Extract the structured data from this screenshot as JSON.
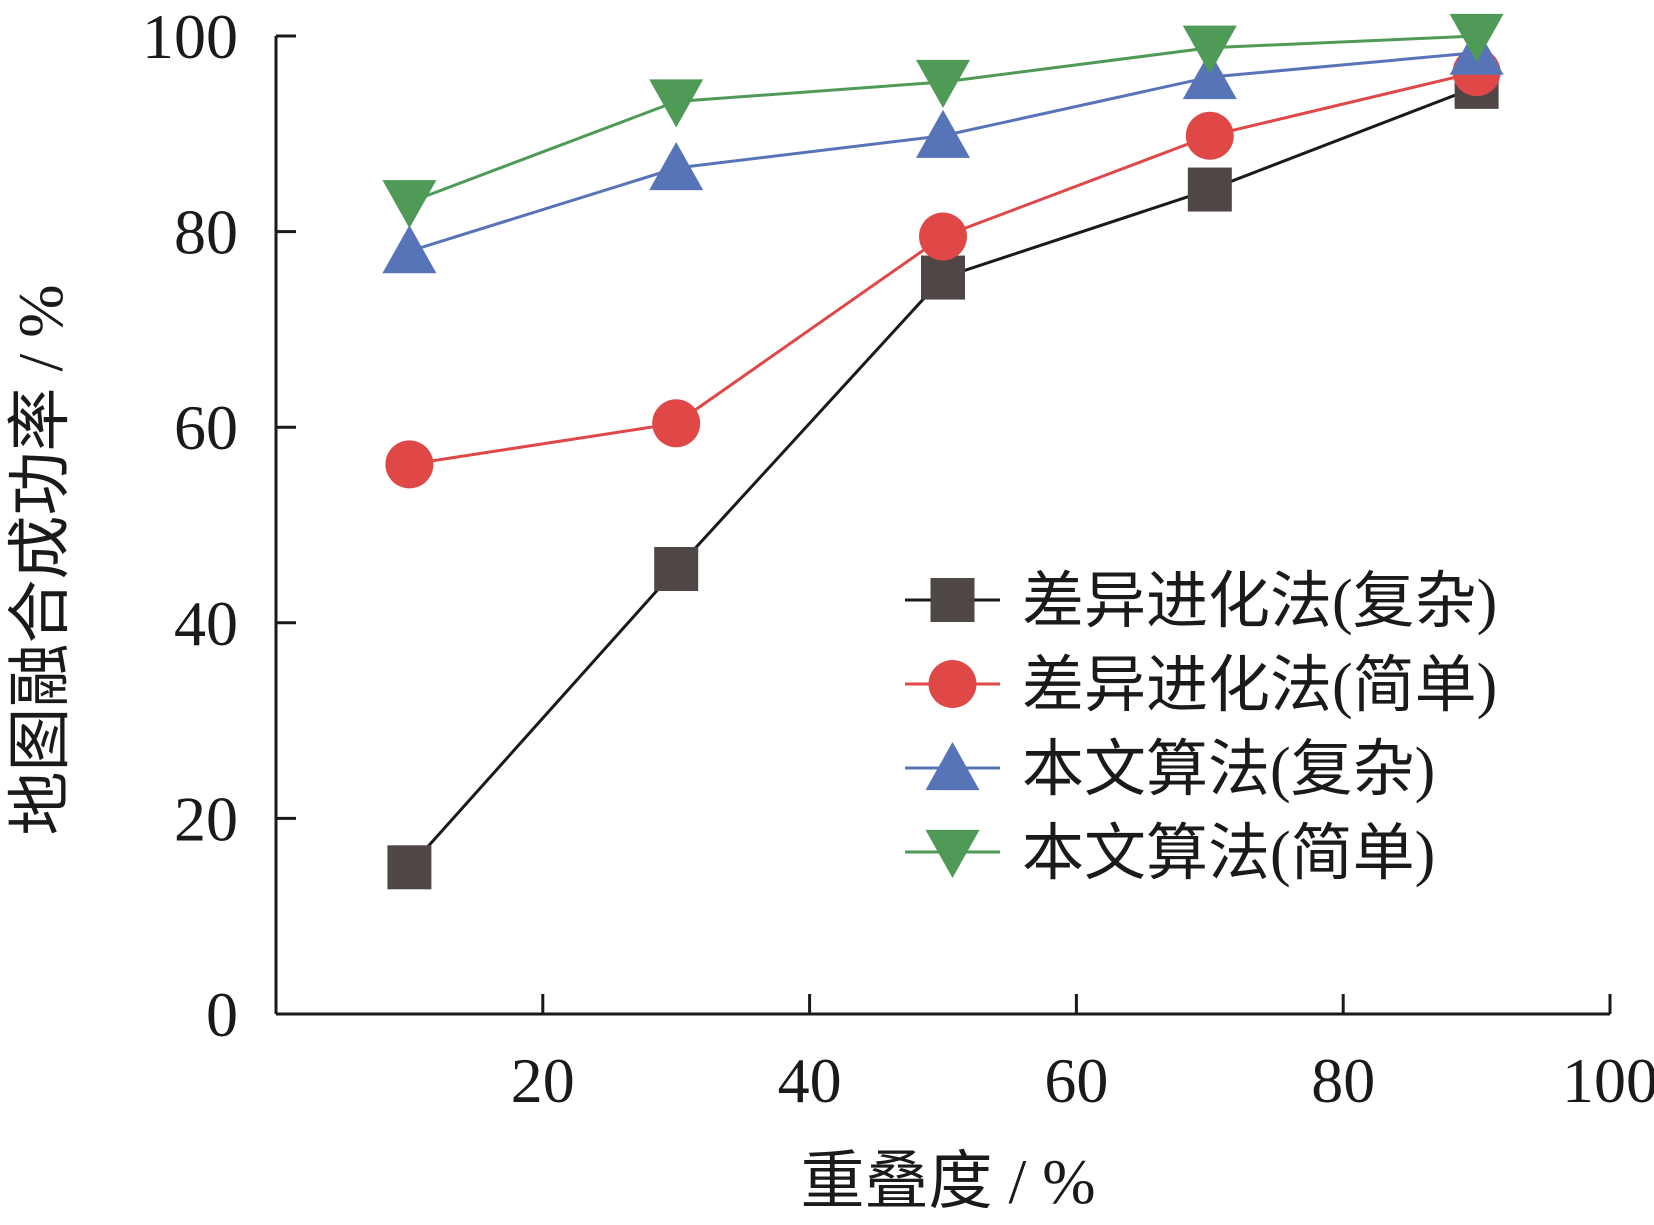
{
  "chart_data": {
    "type": "line",
    "xlabel": "重叠度 / %",
    "ylabel": "地图融合成功率 / %",
    "xlim": [
      0,
      100
    ],
    "ylim": [
      0,
      100
    ],
    "xticks": [
      20,
      40,
      60,
      80,
      100
    ],
    "yticks": [
      0,
      20,
      40,
      60,
      80,
      100
    ],
    "x": [
      10,
      30,
      50,
      70,
      90
    ],
    "legend_position": "center-right",
    "series": [
      {
        "name": "差异进化法(复杂)",
        "marker": "square",
        "color": "#4f4745",
        "line_color": "#1a1a1a",
        "values": [
          15,
          45.5,
          75.3,
          84.3,
          94.8
        ]
      },
      {
        "name": "差异进化法(简单)",
        "marker": "circle",
        "color": "#e04848",
        "line_color": "#e04848",
        "values": [
          56.2,
          60.4,
          79.5,
          89.8,
          96.3
        ]
      },
      {
        "name": "本文算法(复杂)",
        "marker": "triangle-up",
        "color": "#5874b8",
        "line_color": "#5874b8",
        "values": [
          78,
          86.5,
          89.8,
          95.8,
          98.3
        ]
      },
      {
        "name": "本文算法(简单)",
        "marker": "triangle-down",
        "color": "#4e9a56",
        "line_color": "#4e9a56",
        "values": [
          83,
          93.3,
          95.3,
          98.8,
          100
        ]
      }
    ]
  }
}
